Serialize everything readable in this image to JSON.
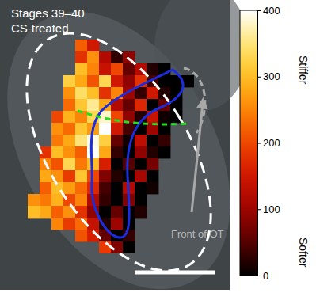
{
  "chart_data": {
    "type": "heatmap",
    "annotations": [
      "Stages 39–40",
      "CS-treated",
      "Front of OT"
    ],
    "cells": [
      [
        null,
        null,
        null,
        null,
        220,
        150,
        null,
        null,
        null,
        null,
        null,
        null,
        null,
        null
      ],
      [
        null,
        null,
        null,
        null,
        180,
        260,
        120,
        30,
        90,
        null,
        null,
        null,
        null,
        null
      ],
      [
        null,
        null,
        null,
        null,
        300,
        250,
        140,
        200,
        60,
        120,
        20,
        0,
        null,
        null
      ],
      [
        null,
        null,
        null,
        320,
        280,
        210,
        330,
        150,
        90,
        180,
        40,
        0,
        0,
        0
      ],
      [
        null,
        null,
        null,
        260,
        340,
        300,
        180,
        250,
        100,
        30,
        150,
        20,
        0,
        null
      ],
      [
        null,
        null,
        null,
        230,
        310,
        360,
        280,
        120,
        60,
        170,
        0,
        60,
        0,
        null
      ],
      [
        null,
        null,
        200,
        290,
        250,
        330,
        380,
        200,
        90,
        20,
        140,
        10,
        0,
        null
      ],
      [
        null,
        null,
        260,
        230,
        310,
        270,
        400,
        150,
        40,
        0,
        100,
        0,
        null,
        null
      ],
      [
        null,
        null,
        240,
        280,
        350,
        390,
        320,
        60,
        10,
        130,
        0,
        30,
        null,
        null
      ],
      [
        null,
        180,
        300,
        260,
        220,
        400,
        280,
        30,
        0,
        90,
        20,
        0,
        null,
        null
      ],
      [
        null,
        250,
        210,
        330,
        240,
        300,
        160,
        0,
        50,
        0,
        70,
        null,
        null,
        null
      ],
      [
        null,
        280,
        260,
        190,
        310,
        200,
        80,
        20,
        0,
        110,
        0,
        null,
        null,
        null
      ],
      [
        null,
        220,
        300,
        270,
        230,
        170,
        40,
        0,
        120,
        0,
        10,
        null,
        null,
        null
      ],
      [
        260,
        240,
        290,
        200,
        250,
        120,
        30,
        0,
        80,
        0,
        null,
        null,
        null,
        null
      ],
      [
        300,
        280,
        220,
        260,
        180,
        90,
        0,
        60,
        0,
        20,
        null,
        null,
        null,
        null
      ],
      [
        null,
        null,
        250,
        190,
        230,
        140,
        20,
        100,
        0,
        null,
        null,
        null,
        null,
        null
      ],
      [
        null,
        null,
        null,
        null,
        210,
        160,
        60,
        0,
        30,
        null,
        null,
        null,
        null,
        null
      ],
      [
        null,
        null,
        null,
        null,
        null,
        null,
        190,
        80,
        0,
        null,
        null,
        null,
        null,
        null
      ]
    ],
    "colorbar": {
      "range": [
        0,
        400
      ],
      "ticks": [
        0,
        100,
        200,
        300,
        400
      ]
    },
    "colorbar_labels": {
      "high": "Stiffer",
      "low": "Softer"
    }
  }
}
